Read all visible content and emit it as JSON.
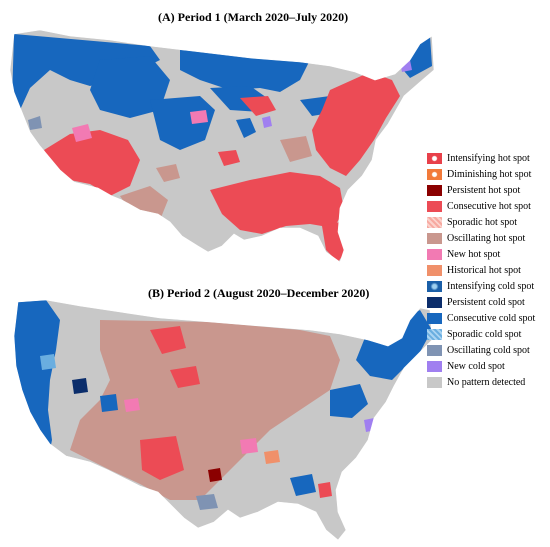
{
  "panels": {
    "a": {
      "title": "(A) Period 1 (March 2020–July 2020)"
    },
    "b": {
      "title": "(B) Period 2 (August 2020–December 2020)"
    }
  },
  "legend": {
    "items": [
      {
        "label": "Intensifying hot spot",
        "color": "#e8404a",
        "style": "pattern-hot"
      },
      {
        "label": "Diminishing hot spot",
        "color": "#f27a3a",
        "style": "pattern-dim"
      },
      {
        "label": "Persistent hot spot",
        "color": "#8b0000",
        "style": "solid"
      },
      {
        "label": "Consecutive hot spot",
        "color": "#ec4b55",
        "style": "solid"
      },
      {
        "label": "Sporadic hot spot",
        "color": "#f7a9a0",
        "style": "pattern-shot"
      },
      {
        "label": "Oscillating hot spot",
        "color": "#c9978e",
        "style": "solid"
      },
      {
        "label": "New hot spot",
        "color": "#f27ab3",
        "style": "solid"
      },
      {
        "label": "Historical hot spot",
        "color": "#f0906a",
        "style": "solid"
      },
      {
        "label": "Intensifying cold spot",
        "color": "#1a5fa8",
        "style": "pattern-icold"
      },
      {
        "label": "Persistent cold spot",
        "color": "#0b2d6b",
        "style": "solid"
      },
      {
        "label": "Consecutive cold spot",
        "color": "#1767be",
        "style": "solid"
      },
      {
        "label": "Sporadic cold spot",
        "color": "#6aaee0",
        "style": "pattern-scold"
      },
      {
        "label": "Oscillating cold spot",
        "color": "#7f93b3",
        "style": "solid"
      },
      {
        "label": "New cold spot",
        "color": "#a07ff0",
        "style": "solid"
      },
      {
        "label": "No pattern detected",
        "color": "#c8c8c8",
        "style": "solid"
      }
    ]
  }
}
